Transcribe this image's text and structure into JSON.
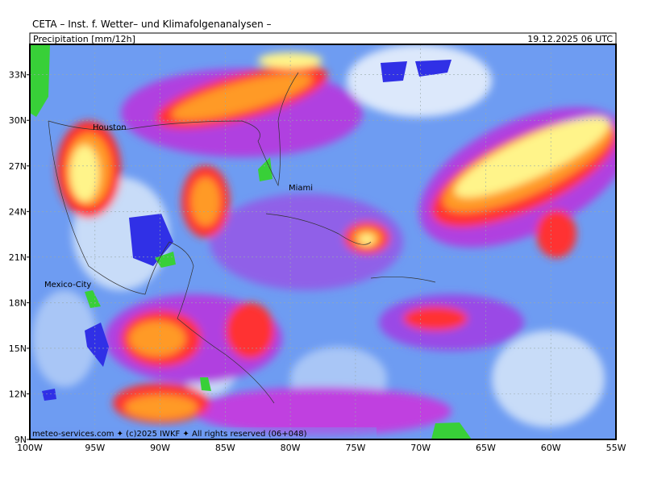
{
  "header": {
    "title": "CETA – Inst. f. Wetter– und Klimafolgenanalysen –",
    "product": "Precipitation [mm/12h]",
    "valid_time": "19.12.2025 06 UTC"
  },
  "lat_labels": [
    "33N",
    "30N",
    "27N",
    "24N",
    "21N",
    "18N",
    "15N",
    "12N",
    "9N"
  ],
  "lon_labels": [
    "100W",
    "95W",
    "90W",
    "85W",
    "80W",
    "75W",
    "70W",
    "65W",
    "60W",
    "55W"
  ],
  "cities": [
    "Houston",
    "Miami",
    "Mexico-City"
  ],
  "footer": "meteo-services.com ✦ (c)2025 IWKF ✦ All rights reserved (06+048)"
}
